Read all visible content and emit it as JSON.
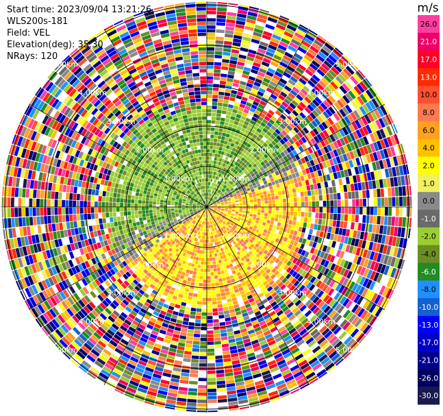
{
  "header": {
    "start_time": "Start time: 2023/09/04 13:21:26",
    "instrument": "WLS200s-181",
    "field": "Field: VEL",
    "elevation": "Elevation(deg): 35.30",
    "nrays": "NRays: 120"
  },
  "chart_data": {
    "type": "heatmap",
    "projection": "polar-ppi",
    "field": "VEL",
    "units": "m/s",
    "elevation_deg": 35.3,
    "n_rays": 120,
    "range_rings_km": [
      1.0,
      2.0,
      3.0,
      4.0,
      5.0
    ],
    "ring_labels": [
      "1.00km",
      "2.00km",
      "3.00km",
      "4.00km",
      "5.00km"
    ],
    "colorbar": {
      "title": "m/s",
      "ticks": [
        "26.0",
        "21.0",
        "17.0",
        "13.0",
        "10.0",
        "8.0",
        "6.0",
        "4.0",
        "2.0",
        "1.0",
        "0.0",
        "-1.0",
        "-2.0",
        "-4.0",
        "-6.0",
        "-8.0",
        "-10.0",
        "-13.0",
        "-17.0",
        "-21.0",
        "-26.0",
        "-30.0"
      ],
      "colors": [
        "#ff3fa0",
        "#ee0068",
        "#ff0028",
        "#ff2a00",
        "#ff5030",
        "#ff7a50",
        "#ffa020",
        "#ffc000",
        "#ffff00",
        "#f0f060",
        "#8a8a8a",
        "#6a6a6a",
        "#9acd32",
        "#6b8e23",
        "#228b22",
        "#1e90ff",
        "#1460d0",
        "#0000ff",
        "#0000c8",
        "#000090",
        "#000060",
        "#1a1a50"
      ]
    },
    "velocity_pattern": {
      "inner_range_km": 2.5,
      "toward_color_side": "north-west (green, negative)",
      "away_color_side": "south-east (yellow/orange, positive)",
      "outer_region": "noise (all colors)"
    }
  },
  "colors": {
    "background": "#ffffff",
    "ring_line": "#000000"
  }
}
